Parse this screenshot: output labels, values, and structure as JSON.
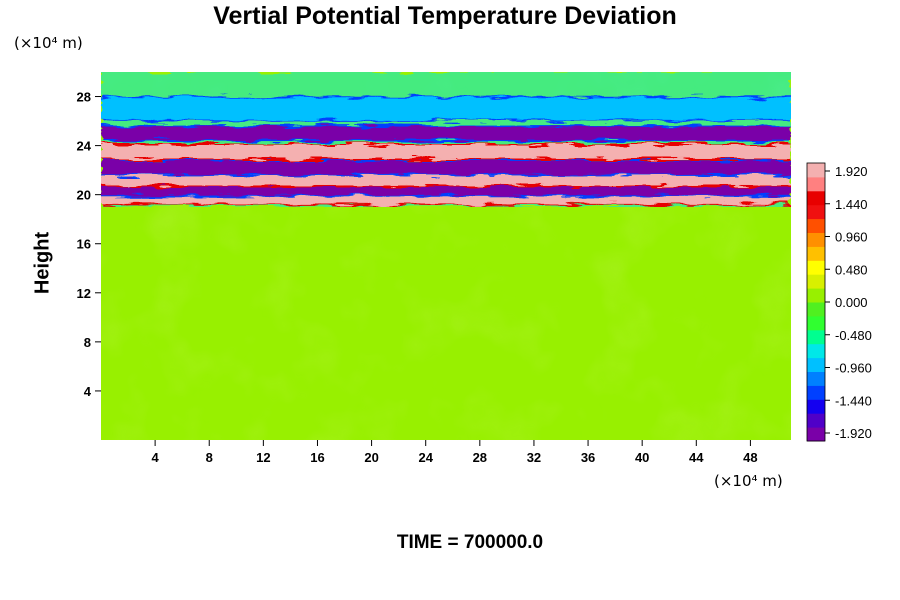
{
  "chart_data": {
    "type": "heatmap",
    "title": "Vertial Potential Temperature Deviation",
    "ylabel": "Height",
    "y_unit": "(×10⁴ m)",
    "x_unit": "(×10⁴ m)",
    "xlim": [
      0,
      51
    ],
    "ylim": [
      0,
      30
    ],
    "x_ticks": [
      4,
      8,
      12,
      16,
      20,
      24,
      28,
      32,
      36,
      40,
      44,
      48
    ],
    "y_ticks": [
      4,
      8,
      12,
      16,
      20,
      24,
      28
    ],
    "field_summary": {
      "background_value": 0.0,
      "disturbance_band_y": [
        19,
        30
      ],
      "oscillation_range": [
        -1.92,
        1.92
      ],
      "bands": [
        {
          "y": 19.8,
          "value": 1.92
        },
        {
          "y": 20.5,
          "value": -1.92
        },
        {
          "y": 21.3,
          "value": 1.92
        },
        {
          "y": 22.2,
          "value": -1.92
        },
        {
          "y": 23.5,
          "value": 1.92
        },
        {
          "y": 25.0,
          "value": -1.92
        },
        {
          "y": 27.0,
          "value": -0.96
        }
      ]
    },
    "colorbar": {
      "min": -1.92,
      "max": 1.92,
      "tick_labels": [
        "1.920",
        "1.440",
        "0.960",
        "0.480",
        "0.000",
        "-0.480",
        "-0.960",
        "-1.440",
        "-1.920"
      ],
      "colors": [
        "#7a00a8",
        "#5000c8",
        "#1400f0",
        "#0040ff",
        "#0080ff",
        "#00c0ff",
        "#00e8e8",
        "#00ff90",
        "#30ff30",
        "#50f020",
        "#98f000",
        "#d8f000",
        "#ffff00",
        "#ffc000",
        "#ff9000",
        "#ff5000",
        "#f01010",
        "#e80000",
        "#ff8080",
        "#f4b0b0"
      ]
    },
    "time_label": "TIME = 700000.0"
  }
}
